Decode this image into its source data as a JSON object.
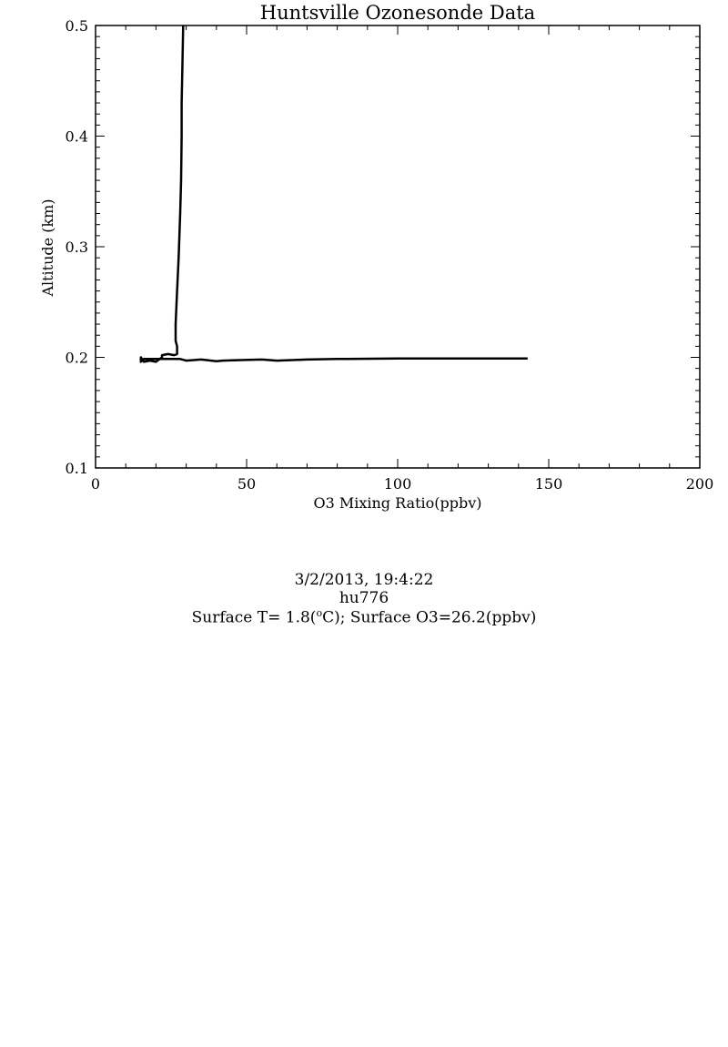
{
  "chart_data": {
    "type": "line",
    "title": "Huntsville Ozonesonde Data",
    "xlabel": "O3 Mixing Ratio(ppbv)",
    "ylabel": "Altitude (km)",
    "xlim": [
      0,
      200
    ],
    "ylim": [
      0.1,
      0.5
    ],
    "xticks": [
      0,
      50,
      100,
      150,
      200
    ],
    "xtick_labels": [
      "0",
      "50",
      "100",
      "150",
      "200"
    ],
    "yticks": [
      0.1,
      0.2,
      0.3,
      0.4,
      0.5
    ],
    "ytick_labels": [
      "0.1",
      "0.2",
      "0.3",
      "0.4",
      "0.5"
    ],
    "grid": false,
    "series": [
      {
        "color": "#000000",
        "x": [
          143,
          120,
          100,
          80,
          70,
          60,
          55,
          48,
          42,
          40,
          35,
          30,
          28,
          26,
          24,
          22,
          20,
          18,
          16,
          15,
          15,
          16,
          18,
          20,
          22,
          22,
          24,
          26,
          27,
          27,
          26.5,
          26.5,
          27,
          27.5,
          28,
          28.3,
          28.5,
          28.5,
          28.8,
          29
        ],
        "y": [
          0.199,
          0.199,
          0.199,
          0.1985,
          0.198,
          0.197,
          0.198,
          0.1975,
          0.197,
          0.1965,
          0.198,
          0.197,
          0.1985,
          0.1985,
          0.1985,
          0.1985,
          0.1985,
          0.1985,
          0.1985,
          0.196,
          0.2,
          0.196,
          0.197,
          0.196,
          0.2,
          0.202,
          0.203,
          0.202,
          0.203,
          0.21,
          0.215,
          0.23,
          0.26,
          0.29,
          0.33,
          0.36,
          0.4,
          0.43,
          0.47,
          0.5
        ]
      }
    ]
  },
  "info": {
    "datetime": "3/2/2013, 19:4:22",
    "station": "hu776",
    "surface_prefix": "Surface T= 1.8(",
    "surface_sup": "o",
    "surface_suffix": "C); Surface O3=26.2(ppbv)"
  }
}
